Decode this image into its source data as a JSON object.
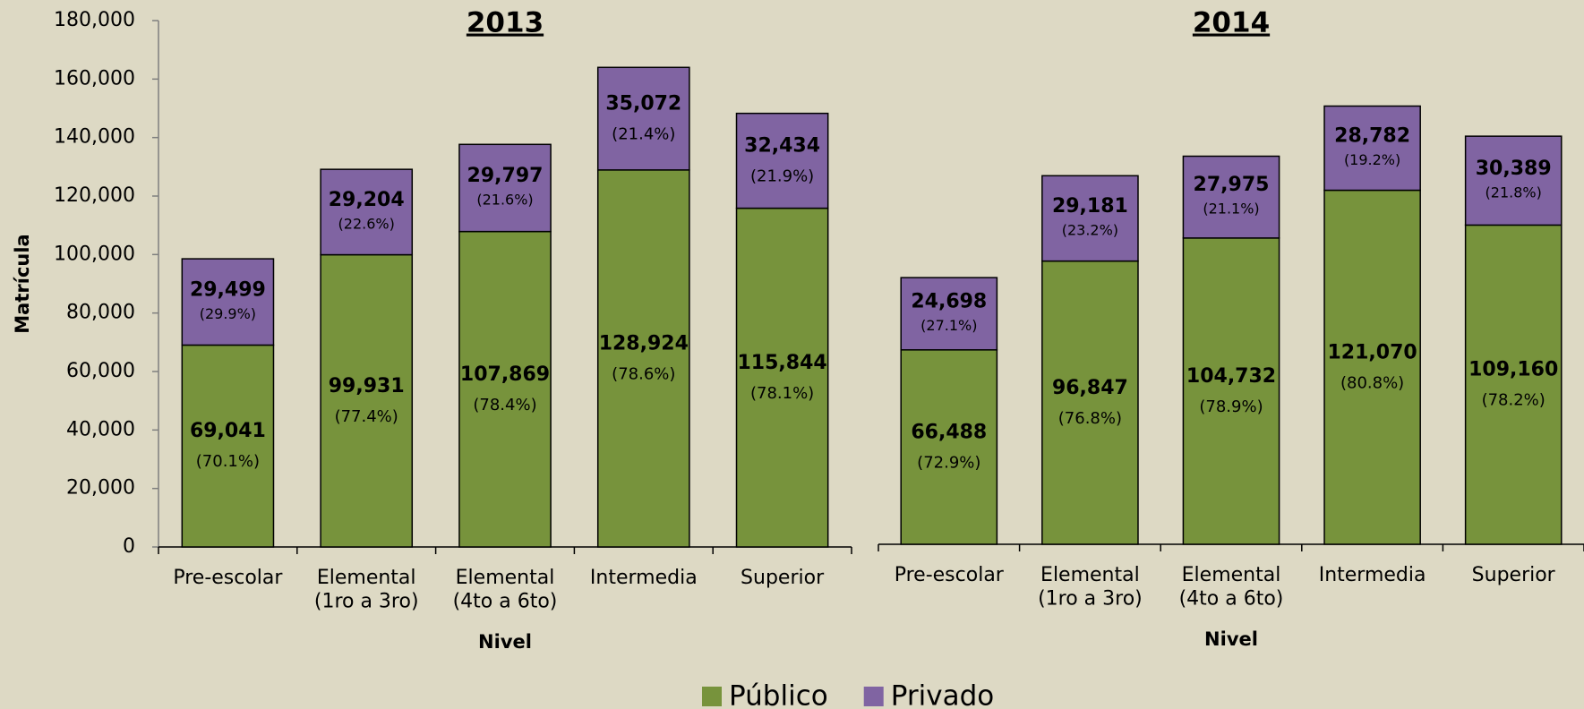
{
  "chart_data": [
    {
      "type": "bar",
      "stacked": true,
      "title": "2013",
      "xlabel": "Nivel",
      "ylabel": "Matrícula",
      "categories": [
        "Pre-escolar",
        "Elemental\n(1ro a 3ro)",
        "Elemental\n(4to a 6to)",
        "Intermedia",
        "Superior"
      ],
      "ylim": [
        0,
        180000
      ],
      "yticks": [
        0,
        {
          "value": 20000,
          "label": "20,000"
        },
        {
          "value": 40000,
          "label": "40,000"
        },
        {
          "value": 60000,
          "label": "60,000"
        },
        {
          "value": 80000,
          "label": "80,000"
        },
        {
          "value": 100000,
          "label": "100,000"
        },
        {
          "value": 120000,
          "label": "120,000"
        },
        {
          "value": 140000,
          "label": "140,000"
        },
        {
          "value": 160000,
          "label": "160,000"
        },
        {
          "value": 180000,
          "label": "180,000"
        }
      ],
      "legend": "bottom",
      "series": [
        {
          "name": "Público",
          "color": "#77933c",
          "values": [
            69041,
            99931,
            107869,
            128924,
            115844
          ],
          "value_labels": [
            "69,041",
            "99,931",
            "107,869",
            "128,924",
            "115,844"
          ],
          "percent_labels": [
            "(70.1%)",
            "(77.4%)",
            "(78.4%)",
            "(78.6%)",
            "(78.1%)"
          ]
        },
        {
          "name": "Privado",
          "color": "#8064a2",
          "values": [
            29499,
            29204,
            29797,
            35072,
            32434
          ],
          "value_labels": [
            "29,499",
            "29,204",
            "29,797",
            "35,072",
            "32,434"
          ],
          "percent_labels": [
            "(29.9%)",
            "(22.6%)",
            "(21.6%)",
            "(21.4%)",
            "(21.9%)"
          ]
        }
      ]
    },
    {
      "type": "bar",
      "stacked": true,
      "title": "2014",
      "xlabel": "Nivel",
      "categories": [
        "Pre-escolar",
        "Elemental\n(1ro a 3ro)",
        "Elemental\n(4to a 6to)",
        "Intermedia",
        "Superior"
      ],
      "ylim": [
        0,
        180000
      ],
      "series": [
        {
          "color": "#77933c",
          "values": [
            66488,
            96847,
            104732,
            121070,
            109160
          ],
          "value_labels": [
            "66,488",
            "96,847",
            "104,732",
            "121,070",
            "109,160"
          ],
          "percent_labels": [
            "(72.9%)",
            "(76.8%)",
            "(78.9%)",
            "(80.8%)",
            "(78.2%)"
          ]
        },
        {
          "color": "#8064a2",
          "values": [
            24698,
            29181,
            27975,
            28782,
            30389
          ],
          "value_labels": [
            "24,698",
            "29,181",
            "27,975",
            "28,782",
            "30,389"
          ],
          "percent_labels": [
            "(27.1%)",
            "(23.2%)",
            "(21.1%)",
            "(19.2%)",
            "(21.8%)"
          ]
        }
      ]
    }
  ]
}
